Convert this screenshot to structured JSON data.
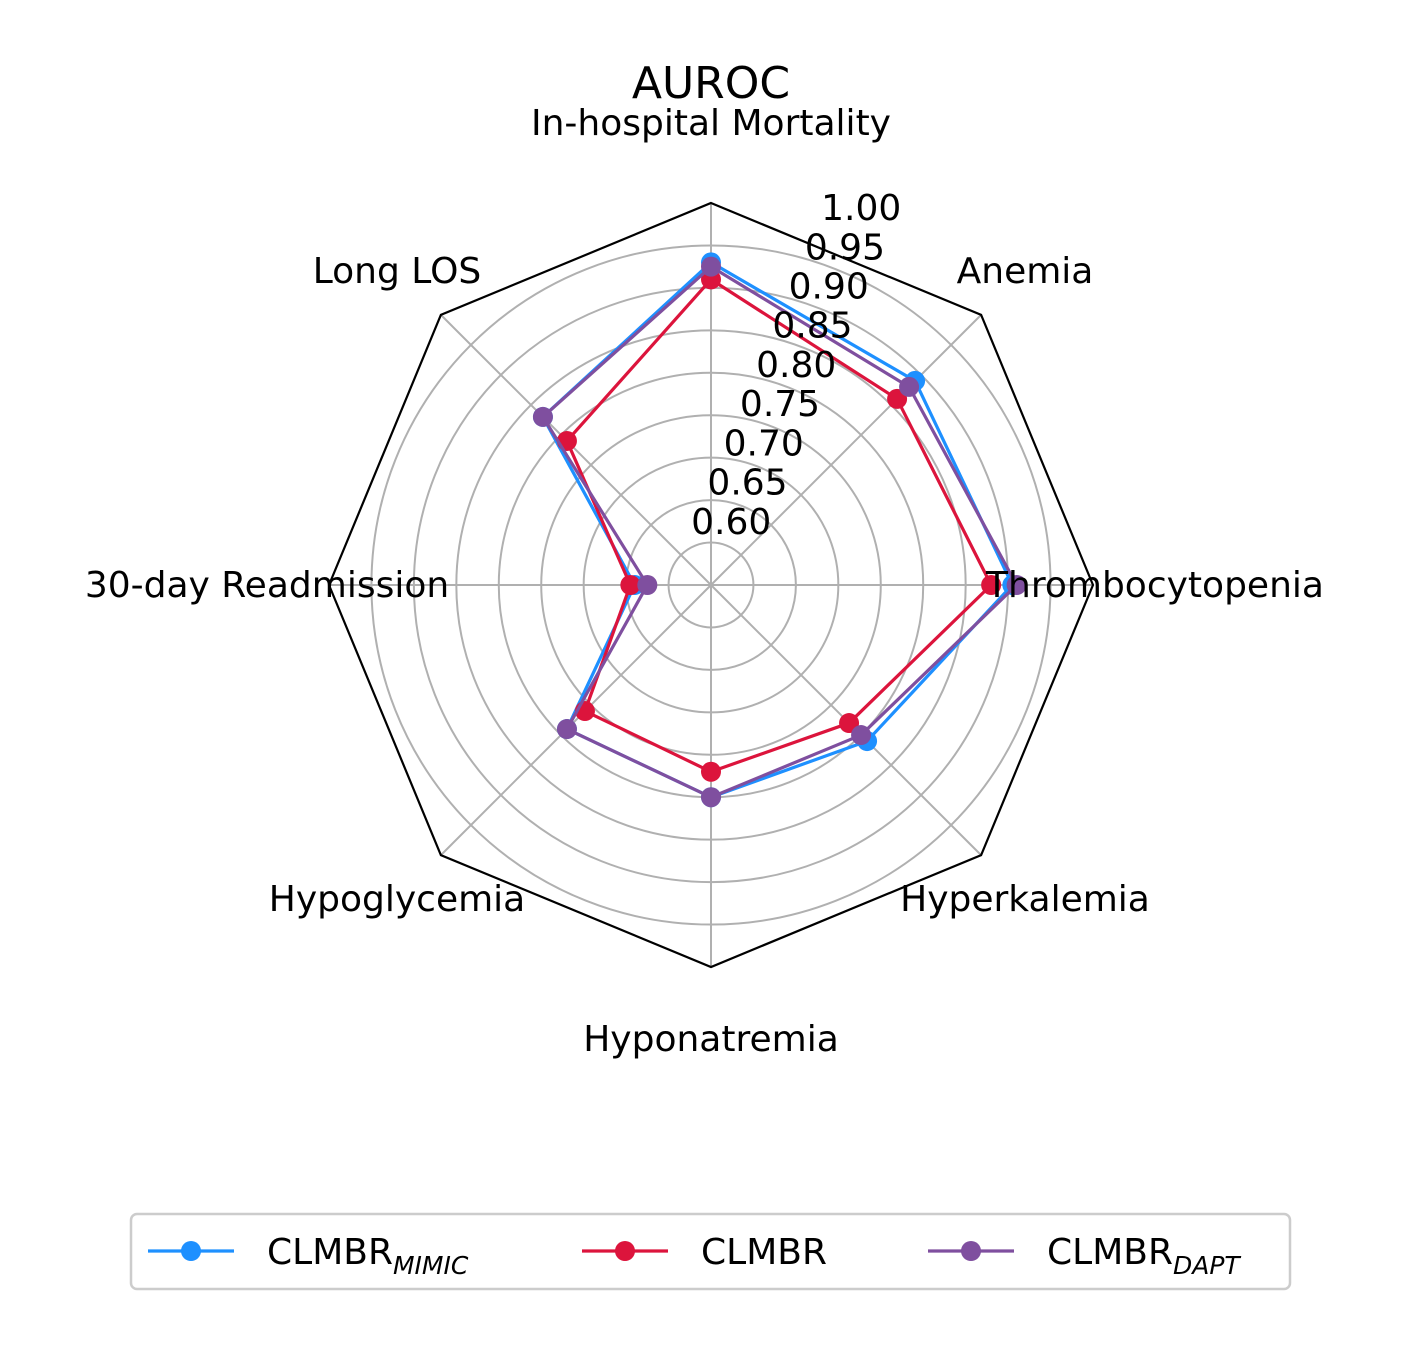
{
  "chart_data": {
    "type": "radar",
    "title": "AUROC",
    "categories": [
      "In-hospital Mortality",
      "Anemia",
      "Thrombocytopenia",
      "Hyperkalemia",
      "Hyponatremia",
      "Hypoglycemia",
      "30-day Readmission",
      "Long LOS"
    ],
    "rlim": [
      0.55,
      1.0
    ],
    "r_ticks": [
      "0.60",
      "0.65",
      "0.70",
      "0.75",
      "0.80",
      "0.85",
      "0.90",
      "0.95",
      "1.00"
    ],
    "grid": true,
    "legend_position": "bottom",
    "series": [
      {
        "name": "CLMBR",
        "subscript": "MIMIC",
        "color": "#1e90ff",
        "values": [
          0.93,
          0.89,
          0.905,
          0.81,
          0.8,
          0.79,
          0.64,
          0.83
        ]
      },
      {
        "name": "CLMBR",
        "subscript": "",
        "color": "#dc143c",
        "values": [
          0.91,
          0.86,
          0.88,
          0.78,
          0.77,
          0.76,
          0.645,
          0.79
        ]
      },
      {
        "name": "CLMBR",
        "subscript": "DAPT",
        "color": "#7f4f9f",
        "values": [
          0.925,
          0.88,
          0.91,
          0.8,
          0.8,
          0.79,
          0.625,
          0.83
        ]
      }
    ]
  }
}
